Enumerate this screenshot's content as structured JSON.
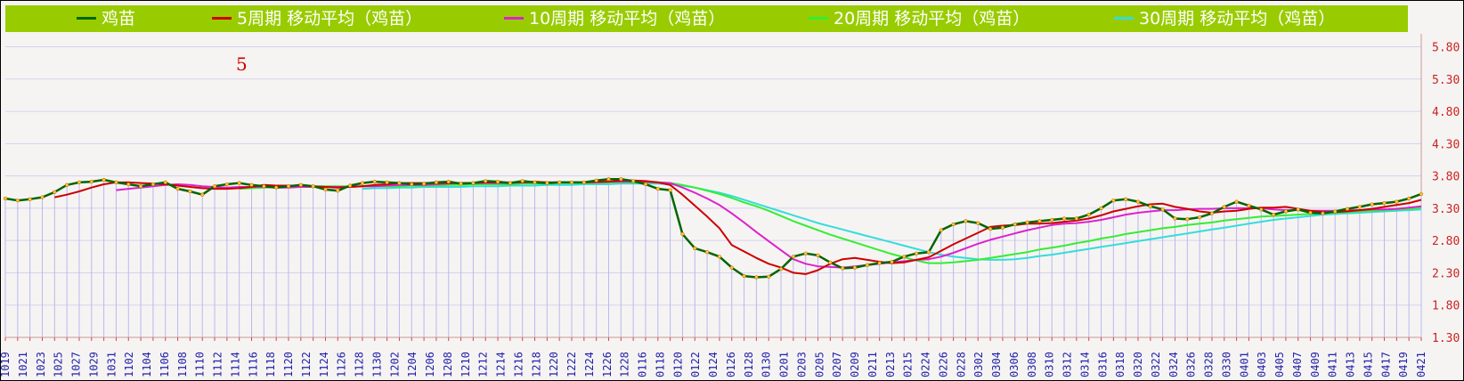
{
  "legend": {
    "items": [
      {
        "label": "鸡苗",
        "color": "#006600",
        "marker": true
      },
      {
        "label": "5周期 移动平均（鸡苗）",
        "color": "#cc0000",
        "marker": false
      },
      {
        "label": "10周期 移动平均（鸡苗）",
        "color": "#dd22cc",
        "marker": false
      },
      {
        "label": "20周期 移动平均（鸡苗）",
        "color": "#33ee33",
        "marker": false
      },
      {
        "label": "30周期 移动平均（鸡苗）",
        "color": "#33dddd",
        "marker": false
      }
    ]
  },
  "annotation": "5",
  "chart_data": {
    "type": "line",
    "ylim": [
      1.3,
      6.0
    ],
    "y_ticks": [
      "1.30",
      "1.80",
      "2.30",
      "2.80",
      "3.30",
      "3.80",
      "4.30",
      "4.80",
      "5.30",
      "5.80"
    ],
    "x_tick_labels": [
      "1019",
      "1021",
      "1023",
      "1025",
      "1027",
      "1029",
      "1031",
      "1102",
      "1104",
      "1106",
      "1108",
      "1110",
      "1112",
      "1114",
      "1116",
      "1118",
      "1120",
      "1122",
      "1124",
      "1126",
      "1128",
      "1130",
      "1202",
      "1204",
      "1206",
      "1208",
      "1210",
      "1212",
      "1214",
      "1216",
      "1218",
      "1220",
      "1222",
      "1224",
      "1226",
      "1228",
      "0116",
      "0118",
      "0120",
      "0122",
      "0124",
      "0126",
      "0128",
      "0130",
      "0201",
      "0203",
      "0205",
      "0207",
      "0209",
      "0211",
      "0213",
      "0215",
      "0224",
      "0226",
      "0228",
      "0302",
      "0304",
      "0306",
      "0308",
      "0310",
      "0312",
      "0314",
      "0316",
      "0318",
      "0320",
      "0322",
      "0324",
      "0326",
      "0328",
      "0330",
      "0401",
      "0403",
      "0405",
      "0407",
      "0409",
      "0411",
      "0413",
      "0415",
      "0417",
      "0419",
      "0421"
    ],
    "series": [
      {
        "name": "鸡苗",
        "color": "#006600",
        "values": [
          3.45,
          3.42,
          3.44,
          3.47,
          3.55,
          3.66,
          3.7,
          3.71,
          3.74,
          3.7,
          3.67,
          3.64,
          3.67,
          3.7,
          3.6,
          3.56,
          3.51,
          3.64,
          3.67,
          3.69,
          3.66,
          3.64,
          3.62,
          3.64,
          3.66,
          3.64,
          3.59,
          3.57,
          3.65,
          3.69,
          3.71,
          3.7,
          3.69,
          3.67,
          3.68,
          3.7,
          3.71,
          3.68,
          3.69,
          3.72,
          3.71,
          3.69,
          3.72,
          3.7,
          3.69,
          3.7,
          3.7,
          3.7,
          3.73,
          3.75,
          3.75,
          3.72,
          3.67,
          3.6,
          3.58,
          2.9,
          2.68,
          2.62,
          2.55,
          2.38,
          2.25,
          2.23,
          2.24,
          2.36,
          2.55,
          2.6,
          2.57,
          2.46,
          2.37,
          2.38,
          2.42,
          2.45,
          2.47,
          2.55,
          2.6,
          2.62,
          2.96,
          3.05,
          3.1,
          3.07,
          2.98,
          3.0,
          3.05,
          3.08,
          3.1,
          3.12,
          3.14,
          3.14,
          3.2,
          3.3,
          3.42,
          3.44,
          3.4,
          3.33,
          3.28,
          3.14,
          3.13,
          3.16,
          3.22,
          3.32,
          3.4,
          3.34,
          3.28,
          3.2,
          3.25,
          3.28,
          3.23,
          3.22,
          3.25,
          3.29,
          3.32,
          3.36,
          3.38,
          3.4,
          3.45,
          3.52
        ]
      },
      {
        "name": "5周期 移动平均（鸡苗）",
        "color": "#cc0000",
        "values": [
          null,
          null,
          null,
          null,
          3.47,
          3.51,
          3.56,
          3.62,
          3.67,
          3.7,
          3.7,
          3.69,
          3.68,
          3.67,
          3.65,
          3.63,
          3.61,
          3.6,
          3.6,
          3.61,
          3.63,
          3.66,
          3.65,
          3.65,
          3.65,
          3.64,
          3.63,
          3.62,
          3.63,
          3.64,
          3.66,
          3.67,
          3.69,
          3.69,
          3.69,
          3.69,
          3.69,
          3.69,
          3.69,
          3.7,
          3.7,
          3.7,
          3.7,
          3.71,
          3.7,
          3.7,
          3.7,
          3.7,
          3.71,
          3.71,
          3.73,
          3.73,
          3.72,
          3.7,
          3.66,
          3.51,
          3.34,
          3.17,
          2.99,
          2.73,
          2.63,
          2.53,
          2.44,
          2.38,
          2.3,
          2.28,
          2.34,
          2.44,
          2.51,
          2.53,
          2.5,
          2.47,
          2.45,
          2.46,
          2.5,
          2.54,
          2.64,
          2.74,
          2.83,
          2.92,
          3.01,
          3.03,
          3.04,
          3.06,
          3.06,
          3.07,
          3.09,
          3.11,
          3.14,
          3.19,
          3.25,
          3.29,
          3.33,
          3.36,
          3.37,
          3.32,
          3.29,
          3.25,
          3.23,
          3.25,
          3.26,
          3.29,
          3.31,
          3.31,
          3.32,
          3.29,
          3.26,
          3.24,
          3.24,
          3.25,
          3.27,
          3.29,
          3.32,
          3.35,
          3.38,
          3.43
        ]
      },
      {
        "name": "10周期 移动平均（鸡苗）",
        "color": "#dd22cc",
        "values": [
          null,
          null,
          null,
          null,
          null,
          null,
          null,
          null,
          null,
          3.58,
          3.6,
          3.62,
          3.64,
          3.66,
          3.67,
          3.66,
          3.64,
          3.63,
          3.62,
          3.63,
          3.63,
          3.63,
          3.62,
          3.62,
          3.63,
          3.63,
          3.63,
          3.63,
          3.63,
          3.64,
          3.64,
          3.65,
          3.66,
          3.66,
          3.66,
          3.67,
          3.68,
          3.69,
          3.69,
          3.69,
          3.69,
          3.69,
          3.7,
          3.7,
          3.7,
          3.7,
          3.7,
          3.7,
          3.7,
          3.71,
          3.71,
          3.71,
          3.71,
          3.7,
          3.69,
          3.62,
          3.54,
          3.45,
          3.35,
          3.22,
          3.08,
          2.93,
          2.79,
          2.65,
          2.51,
          2.44,
          2.4,
          2.39,
          2.38,
          2.4,
          2.42,
          2.44,
          2.46,
          2.48,
          2.5,
          2.51,
          2.55,
          2.61,
          2.68,
          2.75,
          2.81,
          2.86,
          2.91,
          2.96,
          3.0,
          3.04,
          3.06,
          3.07,
          3.09,
          3.12,
          3.16,
          3.2,
          3.23,
          3.25,
          3.27,
          3.27,
          3.28,
          3.29,
          3.29,
          3.3,
          3.3,
          3.3,
          3.3,
          3.28,
          3.27,
          3.27,
          3.26,
          3.26,
          3.26,
          3.27,
          3.27,
          3.28,
          3.28,
          3.29,
          3.31,
          3.33
        ]
      },
      {
        "name": "20周期 移动平均（鸡苗）",
        "color": "#33ee33",
        "values": [
          null,
          null,
          null,
          null,
          null,
          null,
          null,
          null,
          null,
          null,
          null,
          null,
          null,
          null,
          null,
          null,
          null,
          null,
          null,
          3.6,
          3.61,
          3.62,
          3.63,
          3.63,
          3.64,
          3.64,
          3.64,
          3.64,
          3.64,
          3.64,
          3.64,
          3.64,
          3.64,
          3.65,
          3.65,
          3.65,
          3.66,
          3.66,
          3.67,
          3.67,
          3.67,
          3.67,
          3.68,
          3.68,
          3.68,
          3.69,
          3.69,
          3.69,
          3.69,
          3.7,
          3.7,
          3.7,
          3.7,
          3.7,
          3.69,
          3.66,
          3.62,
          3.57,
          3.52,
          3.46,
          3.39,
          3.33,
          3.26,
          3.18,
          3.1,
          3.03,
          2.96,
          2.89,
          2.83,
          2.77,
          2.71,
          2.65,
          2.59,
          2.54,
          2.49,
          2.45,
          2.45,
          2.46,
          2.48,
          2.5,
          2.53,
          2.56,
          2.59,
          2.62,
          2.66,
          2.69,
          2.72,
          2.76,
          2.79,
          2.83,
          2.86,
          2.9,
          2.93,
          2.96,
          2.99,
          3.01,
          3.04,
          3.06,
          3.08,
          3.11,
          3.13,
          3.15,
          3.17,
          3.18,
          3.19,
          3.2,
          3.21,
          3.22,
          3.23,
          3.24,
          3.25,
          3.26,
          3.27,
          3.28,
          3.29,
          3.31
        ]
      },
      {
        "name": "30周期 移动平均（鸡苗）",
        "color": "#33dddd",
        "values": [
          null,
          null,
          null,
          null,
          null,
          null,
          null,
          null,
          null,
          null,
          null,
          null,
          null,
          null,
          null,
          null,
          null,
          null,
          null,
          null,
          null,
          null,
          null,
          null,
          null,
          null,
          null,
          null,
          null,
          3.6,
          3.61,
          3.61,
          3.62,
          3.62,
          3.63,
          3.63,
          3.63,
          3.63,
          3.64,
          3.64,
          3.64,
          3.65,
          3.65,
          3.65,
          3.66,
          3.66,
          3.66,
          3.67,
          3.67,
          3.67,
          3.68,
          3.68,
          3.68,
          3.68,
          3.67,
          3.65,
          3.62,
          3.58,
          3.54,
          3.49,
          3.43,
          3.37,
          3.31,
          3.25,
          3.19,
          3.13,
          3.07,
          3.02,
          2.97,
          2.92,
          2.87,
          2.82,
          2.77,
          2.72,
          2.67,
          2.62,
          2.58,
          2.55,
          2.53,
          2.51,
          2.5,
          2.5,
          2.51,
          2.53,
          2.56,
          2.58,
          2.61,
          2.64,
          2.67,
          2.7,
          2.73,
          2.76,
          2.79,
          2.82,
          2.85,
          2.88,
          2.91,
          2.94,
          2.97,
          3.0,
          3.03,
          3.06,
          3.09,
          3.12,
          3.14,
          3.16,
          3.18,
          3.2,
          3.21,
          3.22,
          3.23,
          3.24,
          3.25,
          3.26,
          3.27,
          3.28
        ]
      }
    ]
  }
}
